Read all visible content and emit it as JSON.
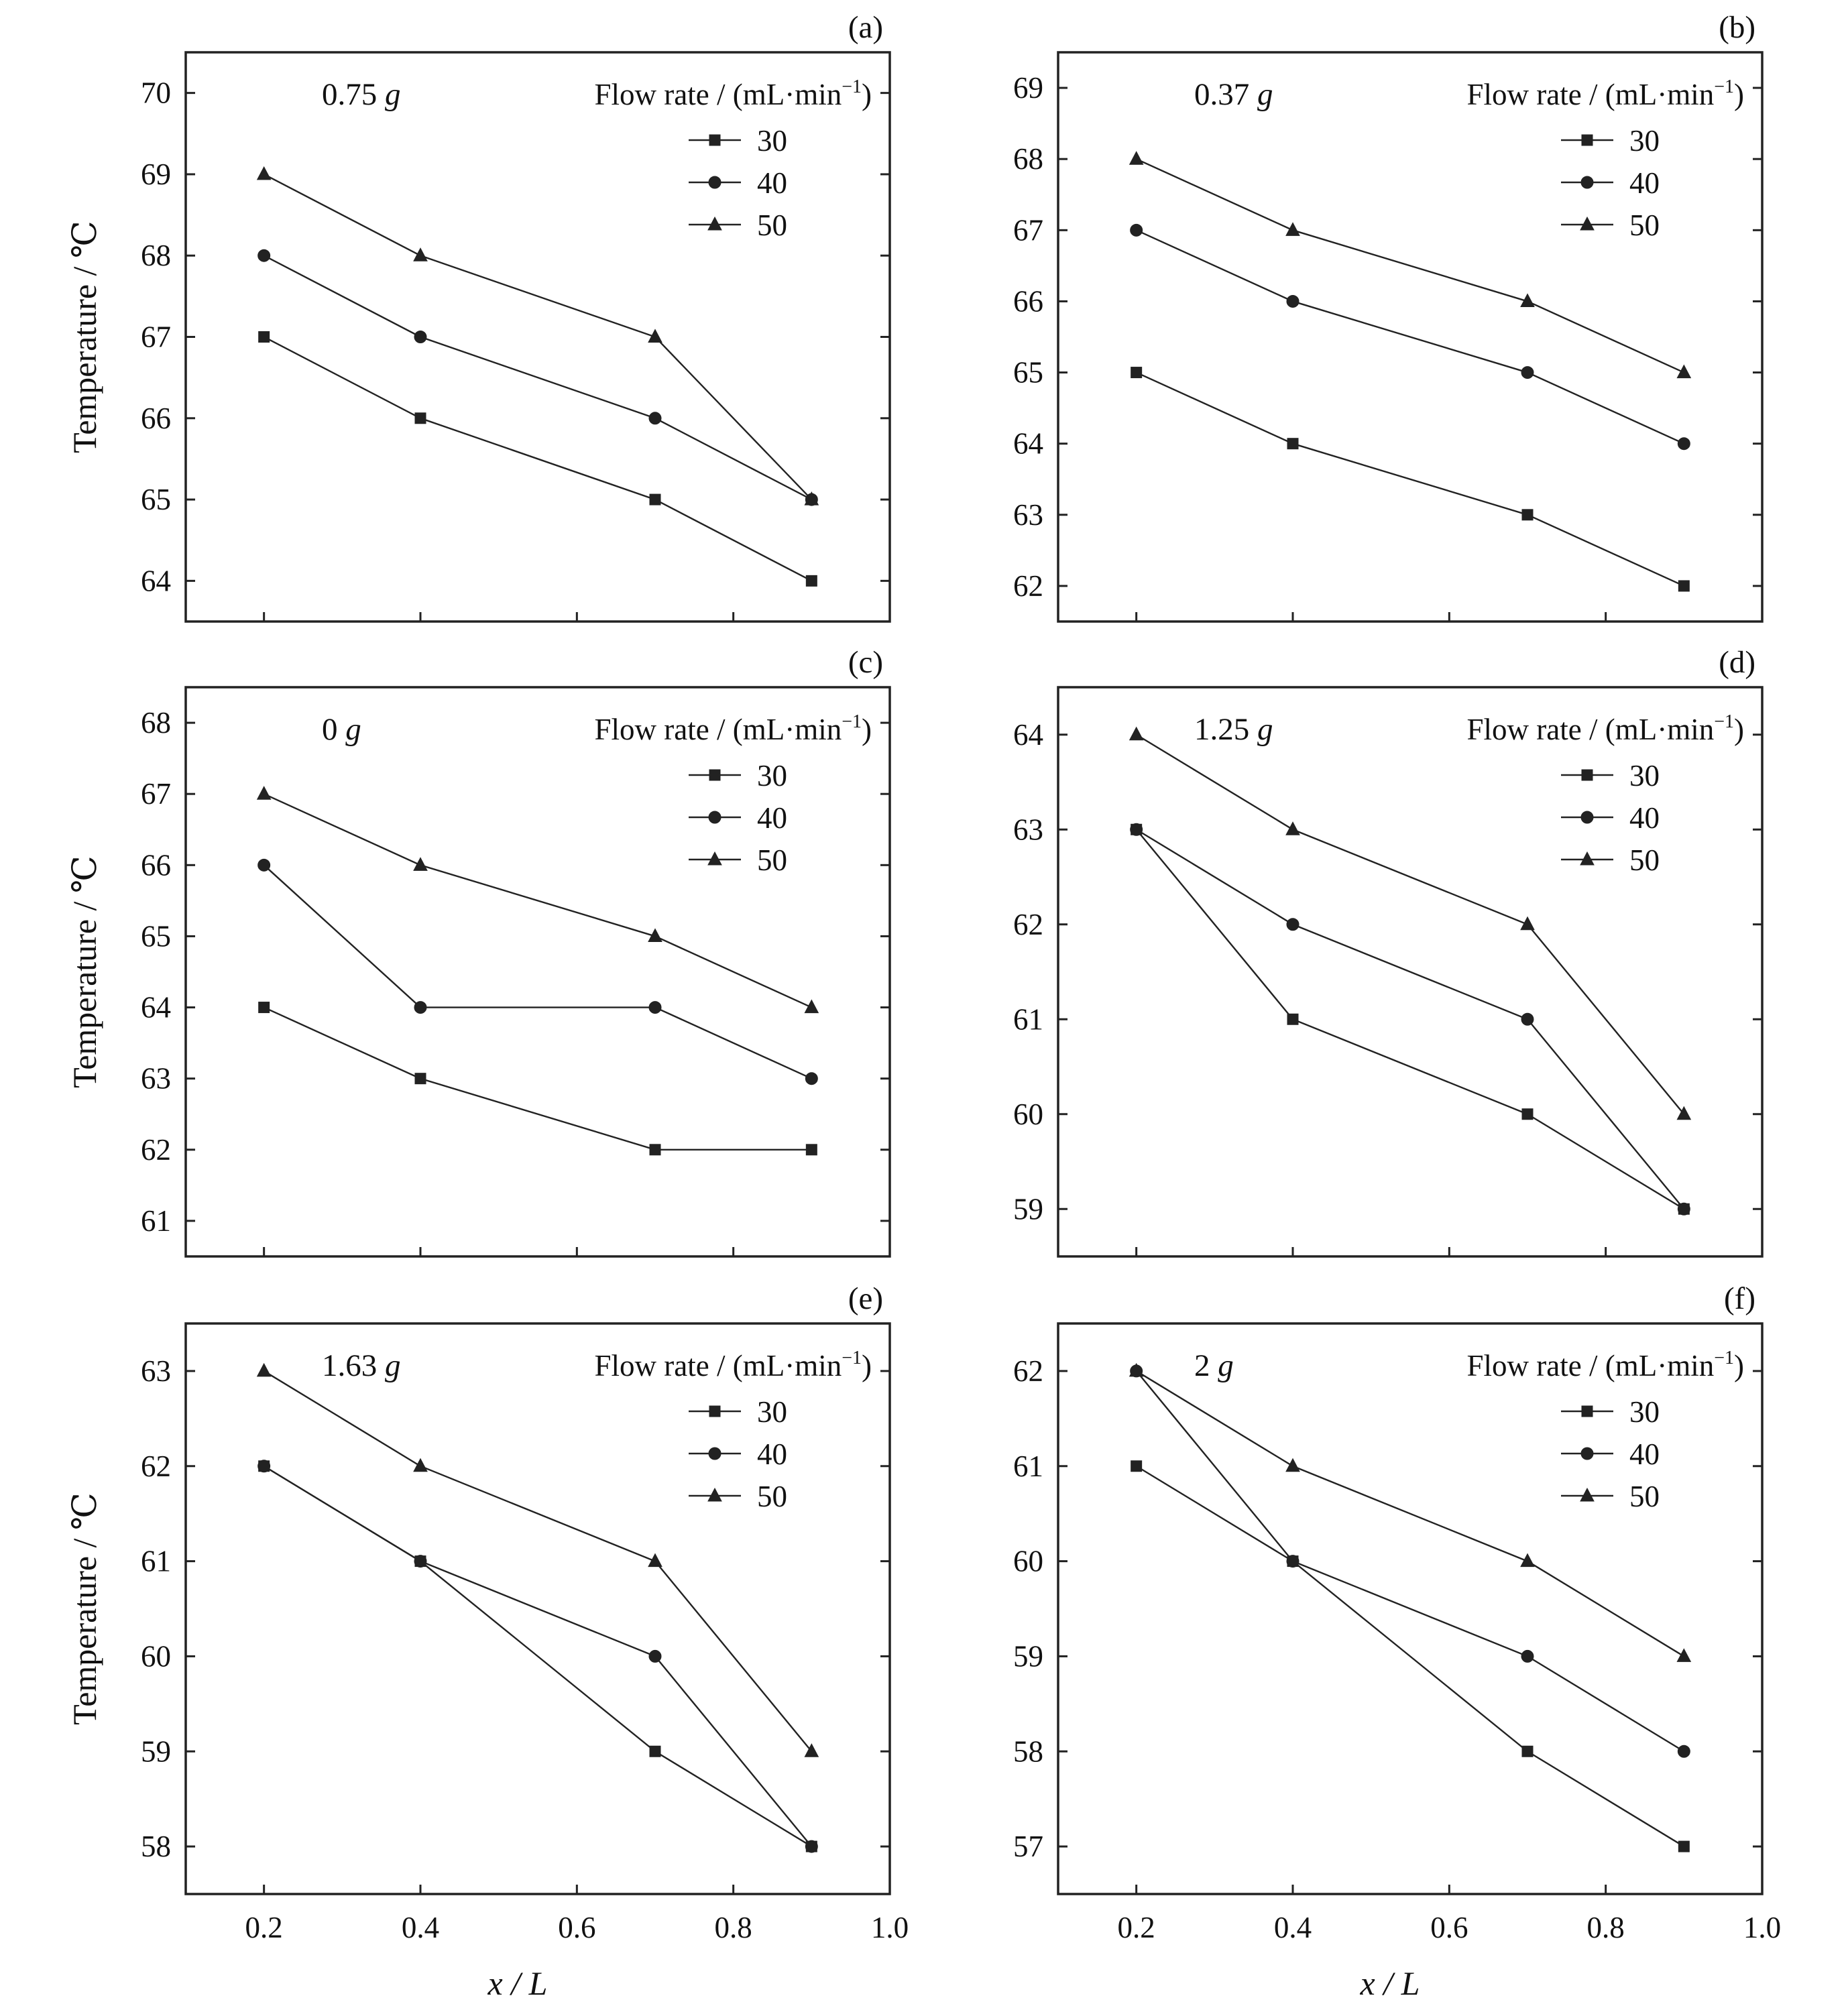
{
  "chart_data": [
    {
      "type": "line",
      "panel_label": "(a)",
      "condition": {
        "value": "0.75",
        "unit": "g"
      },
      "legend_title": {
        "text": "Flow rate / (mL·min",
        "sup": "−1",
        "close": ")"
      },
      "xlabel": "",
      "ylabel": "Temperature / ℃",
      "x": [
        0.2,
        0.4,
        0.7,
        0.9
      ],
      "xlim": [
        0.1,
        1.0
      ],
      "xticks": [
        0.2,
        0.4,
        0.6,
        0.8,
        1.0
      ],
      "xtick_labels": [
        "0.2",
        "0.4",
        "0.6",
        "0.8",
        "1.0"
      ],
      "ylim": [
        63.5,
        70.5
      ],
      "yticks": [
        64,
        65,
        66,
        67,
        68,
        69,
        70
      ],
      "series": [
        {
          "name": "30",
          "marker": "square",
          "values": [
            67,
            66,
            65,
            64
          ]
        },
        {
          "name": "40",
          "marker": "circle",
          "values": [
            68,
            67,
            66,
            65
          ]
        },
        {
          "name": "50",
          "marker": "triangle",
          "values": [
            69,
            68,
            67,
            65
          ]
        }
      ]
    },
    {
      "type": "line",
      "panel_label": "(b)",
      "condition": {
        "value": "0.37",
        "unit": "g"
      },
      "legend_title": {
        "text": "Flow rate / (mL·min",
        "sup": "−1",
        "close": ")"
      },
      "xlabel": "",
      "ylabel": "",
      "x": [
        0.2,
        0.4,
        0.7,
        0.9
      ],
      "xlim": [
        0.1,
        1.0
      ],
      "xticks": [
        0.2,
        0.4,
        0.6,
        0.8,
        1.0
      ],
      "xtick_labels": [
        "0.2",
        "0.4",
        "0.6",
        "0.8",
        "1.0"
      ],
      "ylim": [
        61.5,
        69.5
      ],
      "yticks": [
        62,
        63,
        64,
        65,
        66,
        67,
        68,
        69
      ],
      "series": [
        {
          "name": "30",
          "marker": "square",
          "values": [
            65,
            64,
            63,
            62
          ]
        },
        {
          "name": "40",
          "marker": "circle",
          "values": [
            67,
            66,
            65,
            64
          ]
        },
        {
          "name": "50",
          "marker": "triangle",
          "values": [
            68,
            67,
            66,
            65
          ]
        }
      ]
    },
    {
      "type": "line",
      "panel_label": "(c)",
      "condition": {
        "value": "0",
        "unit": "g"
      },
      "legend_title": {
        "text": "Flow rate / (mL·min",
        "sup": "−1",
        "close": ")"
      },
      "xlabel": "",
      "ylabel": "Temperature / ℃",
      "x": [
        0.2,
        0.4,
        0.7,
        0.9
      ],
      "xlim": [
        0.1,
        1.0
      ],
      "xticks": [
        0.2,
        0.4,
        0.6,
        0.8,
        1.0
      ],
      "xtick_labels": [
        "0.2",
        "0.4",
        "0.6",
        "0.8",
        "1.0"
      ],
      "ylim": [
        60.5,
        68.5
      ],
      "yticks": [
        61,
        62,
        63,
        64,
        65,
        66,
        67,
        68
      ],
      "series": [
        {
          "name": "30",
          "marker": "square",
          "values": [
            64,
            63,
            62,
            62
          ]
        },
        {
          "name": "40",
          "marker": "circle",
          "values": [
            66,
            64,
            64,
            63
          ]
        },
        {
          "name": "50",
          "marker": "triangle",
          "values": [
            67,
            66,
            65,
            64
          ]
        }
      ]
    },
    {
      "type": "line",
      "panel_label": "(d)",
      "condition": {
        "value": "1.25",
        "unit": "g"
      },
      "legend_title": {
        "text": "Flow rate / (mL·min",
        "sup": "−1",
        "close": ")"
      },
      "xlabel": "",
      "ylabel": "",
      "x": [
        0.2,
        0.4,
        0.7,
        0.9
      ],
      "xlim": [
        0.1,
        1.0
      ],
      "xticks": [
        0.2,
        0.4,
        0.6,
        0.8,
        1.0
      ],
      "xtick_labels": [
        "0.2",
        "0.4",
        "0.6",
        "0.8",
        "1.0"
      ],
      "ylim": [
        58.5,
        64.5
      ],
      "yticks": [
        59,
        60,
        61,
        62,
        63,
        64
      ],
      "series": [
        {
          "name": "30",
          "marker": "square",
          "values": [
            63,
            61,
            60,
            59
          ]
        },
        {
          "name": "40",
          "marker": "circle",
          "values": [
            63,
            62,
            61,
            59
          ]
        },
        {
          "name": "50",
          "marker": "triangle",
          "values": [
            64,
            63,
            62,
            60
          ]
        }
      ]
    },
    {
      "type": "line",
      "panel_label": "(e)",
      "condition": {
        "value": "1.63",
        "unit": "g"
      },
      "legend_title": {
        "text": "Flow rate / (mL·min",
        "sup": "−1",
        "close": ")"
      },
      "xlabel": "x / L",
      "ylabel": "Temperature / ℃",
      "x": [
        0.2,
        0.4,
        0.7,
        0.9
      ],
      "xlim": [
        0.1,
        1.0
      ],
      "xticks": [
        0.2,
        0.4,
        0.6,
        0.8,
        1.0
      ],
      "xtick_labels": [
        "0.2",
        "0.4",
        "0.6",
        "0.8",
        "1.0"
      ],
      "ylim": [
        57.5,
        63.5
      ],
      "yticks": [
        58,
        59,
        60,
        61,
        62,
        63
      ],
      "series": [
        {
          "name": "30",
          "marker": "square",
          "values": [
            62,
            61,
            59,
            58
          ]
        },
        {
          "name": "40",
          "marker": "circle",
          "values": [
            62,
            61,
            60,
            58
          ]
        },
        {
          "name": "50",
          "marker": "triangle",
          "values": [
            63,
            62,
            61,
            59
          ]
        }
      ]
    },
    {
      "type": "line",
      "panel_label": "(f)",
      "condition": {
        "value": "2",
        "unit": "g"
      },
      "legend_title": {
        "text": "Flow rate / (mL·min",
        "sup": "−1",
        "close": ")"
      },
      "xlabel": "x / L",
      "ylabel": "",
      "x": [
        0.2,
        0.4,
        0.7,
        0.9
      ],
      "xlim": [
        0.1,
        1.0
      ],
      "xticks": [
        0.2,
        0.4,
        0.6,
        0.8,
        1.0
      ],
      "xtick_labels": [
        "0.2",
        "0.4",
        "0.6",
        "0.8",
        "1.0"
      ],
      "ylim": [
        56.5,
        62.5
      ],
      "yticks": [
        57,
        58,
        59,
        60,
        61,
        62
      ],
      "series": [
        {
          "name": "30",
          "marker": "square",
          "values": [
            61,
            60,
            58,
            57
          ]
        },
        {
          "name": "40",
          "marker": "circle",
          "values": [
            62,
            60,
            59,
            58
          ]
        },
        {
          "name": "50",
          "marker": "triangle",
          "values": [
            62,
            61,
            60,
            59
          ]
        }
      ]
    }
  ]
}
